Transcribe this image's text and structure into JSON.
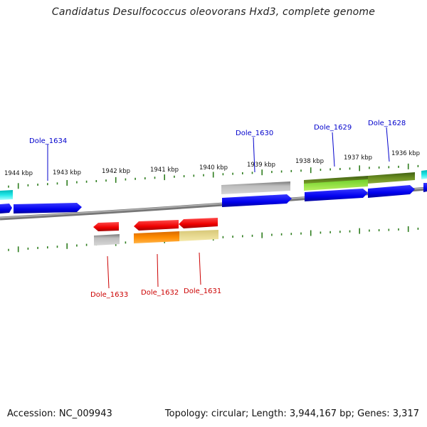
{
  "title": "Candidatus Desulfococcus oleovorans Hxd3, complete genome",
  "footer": {
    "accession": "Accession: NC_009943",
    "topology": "Topology: circular; Length: 3,944,167 bp; Genes: 3,317"
  },
  "colors": {
    "backbone": "#8a8a8a",
    "tick": "#2e7d1e",
    "forward_label": "#0000cc",
    "reverse_label": "#cc0000"
  },
  "ticks": [
    {
      "label": "1944 kbp"
    },
    {
      "label": "1943 kbp"
    },
    {
      "label": "1942 kbp"
    },
    {
      "label": "1941 kbp"
    },
    {
      "label": "1940 kbp"
    },
    {
      "label": "1939 kbp"
    },
    {
      "label": "1938 kbp"
    },
    {
      "label": "1937 kbp"
    },
    {
      "label": "1936 kbp"
    }
  ],
  "gene_labels": {
    "forward": [
      {
        "name": "Dole_1634"
      },
      {
        "name": "Dole_1630"
      },
      {
        "name": "Dole_1629"
      },
      {
        "name": "Dole_1628"
      }
    ],
    "reverse": [
      {
        "name": "Dole_1633"
      },
      {
        "name": "Dole_1632"
      },
      {
        "name": "Dole_1631"
      }
    ]
  }
}
